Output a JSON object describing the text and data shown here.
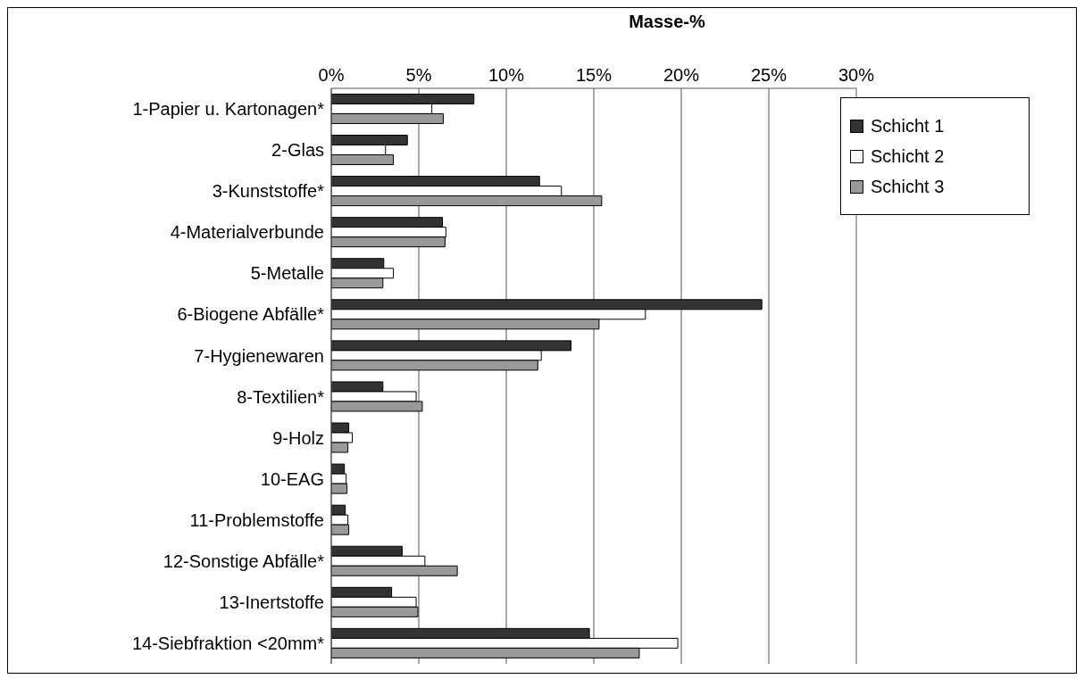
{
  "chart_data": {
    "type": "bar",
    "orientation": "horizontal",
    "xlabel": "Masse-%",
    "categories": [
      "1-Papier u. Kartonagen*",
      "2-Glas",
      "3-Kunststoffe*",
      "4-Materialverbunde",
      "5-Metalle",
      "6-Biogene Abfälle*",
      "7-Hygienewaren",
      "8-Textilien*",
      "9-Holz",
      "10-EAG",
      "11-Problemstoffe",
      "12-Sonstige Abfälle*",
      "13-Inertstoffe",
      "14-Siebfraktion <20mm*"
    ],
    "series": [
      {
        "name": "Schicht 1",
        "color": "#333333",
        "values": [
          8.15,
          4.35,
          11.9,
          6.35,
          3.0,
          24.6,
          13.7,
          2.95,
          1.0,
          0.75,
          0.8,
          4.05,
          3.45,
          14.75
        ]
      },
      {
        "name": "Schicht 2",
        "color": "#ffffff",
        "values": [
          5.75,
          3.1,
          13.15,
          6.55,
          3.55,
          17.95,
          12.0,
          4.85,
          1.2,
          0.85,
          0.95,
          5.35,
          4.85,
          19.8
        ]
      },
      {
        "name": "Schicht 3",
        "color": "#999999",
        "values": [
          6.4,
          3.55,
          15.45,
          6.5,
          2.95,
          15.3,
          11.8,
          5.2,
          0.95,
          0.9,
          1.0,
          7.2,
          4.95,
          17.6
        ]
      }
    ],
    "xlim": [
      0,
      30
    ],
    "xticks": [
      {
        "value": 0,
        "label": "0%"
      },
      {
        "value": 5,
        "label": "5%"
      },
      {
        "value": 10,
        "label": "10%"
      },
      {
        "value": 15,
        "label": "15%"
      },
      {
        "value": 20,
        "label": "20%"
      },
      {
        "value": 25,
        "label": "25%"
      },
      {
        "value": 30,
        "label": "30%"
      }
    ],
    "grid": "x",
    "legend": "top right"
  }
}
